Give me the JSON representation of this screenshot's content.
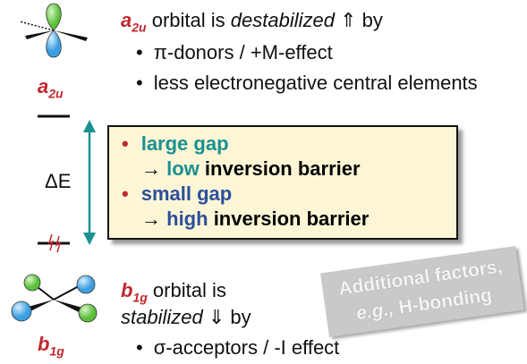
{
  "top": {
    "symbol": "a",
    "subscript": "2u",
    "text": "orbital is",
    "emphasis": "destabilized",
    "arrow": "⇑",
    "suffix": "by",
    "bullets": [
      "π-donors / +M-effect",
      "less electronegative central elements"
    ]
  },
  "top_label": {
    "symbol": "a",
    "subscript": "2u"
  },
  "delta": "ΔE",
  "box": {
    "items": [
      {
        "text": "large gap"
      },
      {
        "arrow": "→",
        "word": "low",
        "rest": "inversion barrier"
      },
      {
        "text": "small gap"
      },
      {
        "arrow": "→",
        "word": "high",
        "rest": "inversion barrier"
      }
    ]
  },
  "note": {
    "line1": "Additional factors,",
    "abbr": "e.g.,",
    "line2": "H-bonding"
  },
  "bottom": {
    "symbol": "b",
    "subscript": "1g",
    "text": "orbital is",
    "emphasis": "stabilized",
    "arrow": "⇓",
    "suffix": "by",
    "bullets": [
      "σ-acceptors / -I effect"
    ]
  },
  "bottom_label": {
    "symbol": "b",
    "subscript": "1g"
  }
}
